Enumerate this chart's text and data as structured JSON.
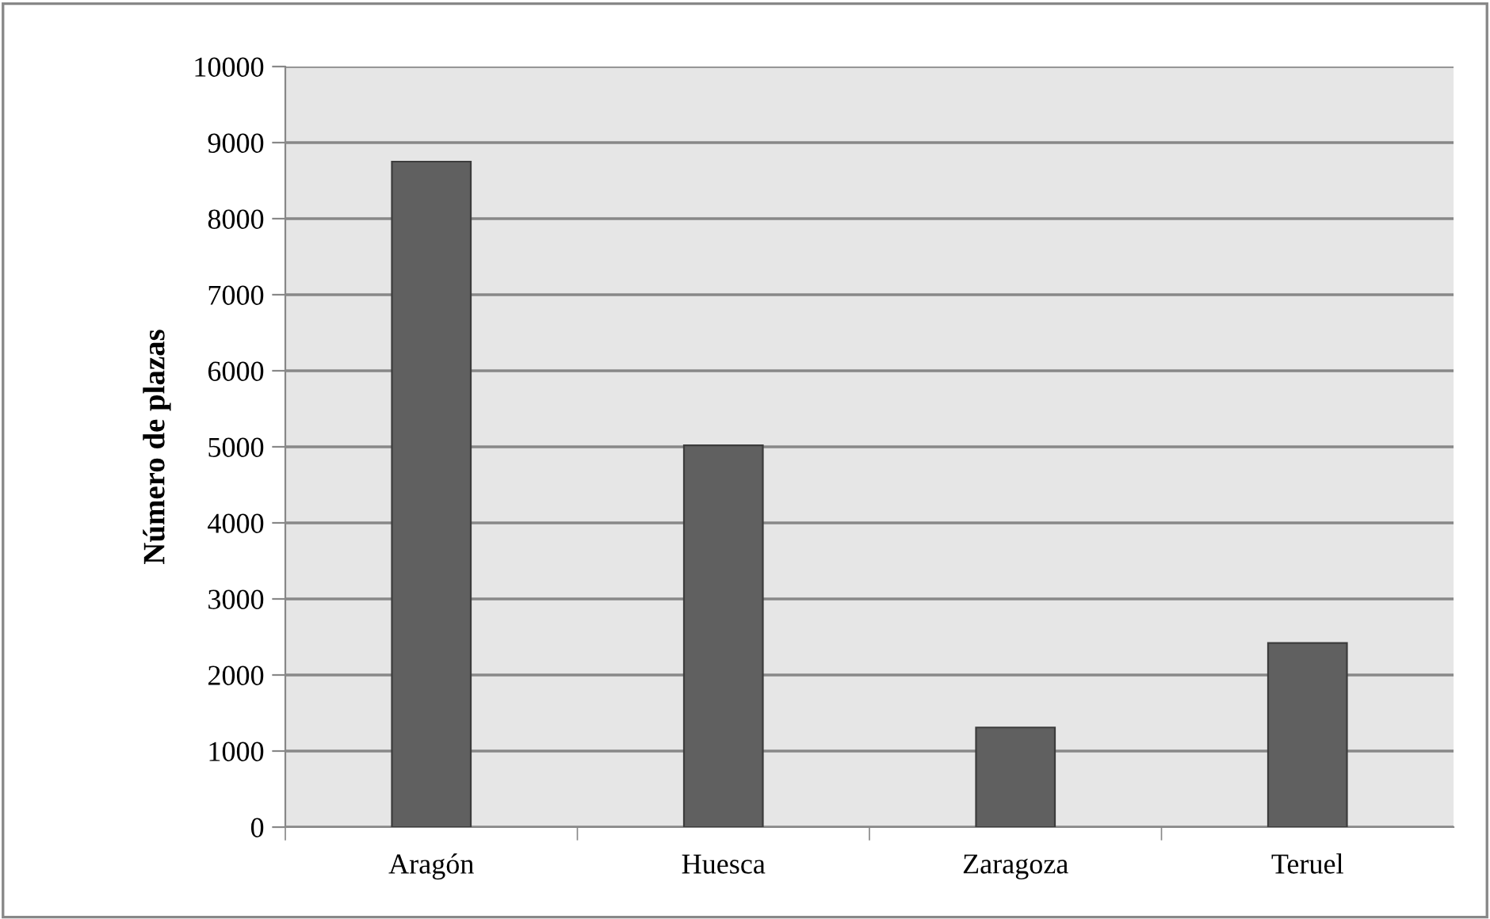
{
  "chart_data": {
    "type": "bar",
    "ylabel": "Número de plazas",
    "categories": [
      "Aragón",
      "Huesca",
      "Zaragoza",
      "Teruel"
    ],
    "values": [
      8750,
      5020,
      1310,
      2420
    ],
    "color": "#606060",
    "ylim": [
      0,
      10000
    ],
    "yticks": [
      0,
      1000,
      2000,
      3000,
      4000,
      5000,
      6000,
      7000,
      8000,
      9000,
      10000
    ],
    "grid": "y",
    "legend": false
  }
}
